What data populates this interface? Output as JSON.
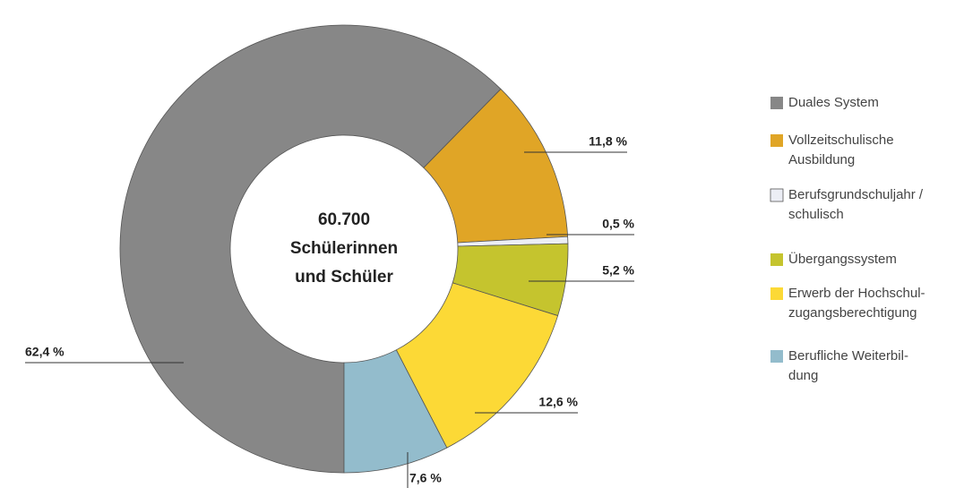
{
  "chart_data": {
    "type": "donut",
    "center_text": [
      "60.700",
      "Schülerinnen",
      "und Schüler"
    ],
    "categories": [
      [
        "Duales System"
      ],
      [
        "Vollzeitschulische",
        "Ausbildung"
      ],
      [
        "Berufsgrundschuljahr /",
        "schulisch"
      ],
      [
        "Übergangssystem"
      ],
      [
        "Erwerb der Hochschul-",
        "zugangsberechtigung"
      ],
      [
        "Berufliche Weiterbil-",
        "dung"
      ]
    ],
    "values": [
      62.4,
      11.8,
      0.5,
      5.2,
      12.6,
      7.6
    ],
    "value_labels": [
      "62,4 %",
      "11,8 %",
      "0,5 %",
      "5,2 %",
      "12,6 %",
      "7,6 %"
    ],
    "colors": [
      "#878787",
      "#e0a526",
      "#eceef5",
      "#c5c42e",
      "#fcd936",
      "#93bccc"
    ]
  }
}
